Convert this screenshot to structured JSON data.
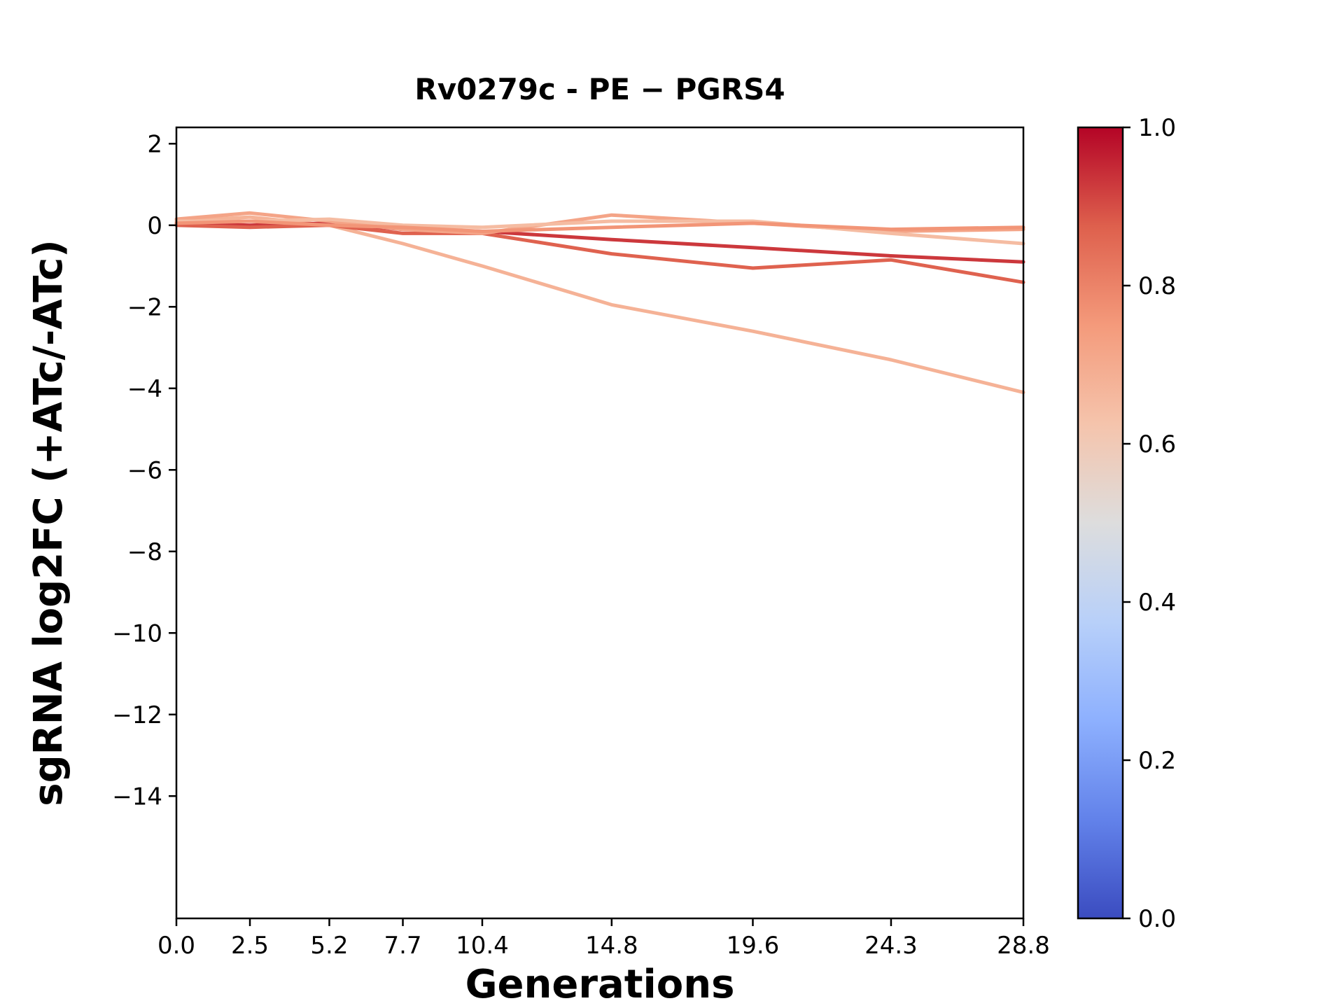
{
  "chart_data": {
    "type": "line",
    "title": "Rv0279c - PE − PGRS4",
    "xlabel": "Generations",
    "ylabel": "sgRNA log2FC (+ATc/-ATc)",
    "x": [
      0.0,
      2.5,
      5.2,
      7.7,
      10.4,
      14.8,
      19.6,
      24.3,
      28.8
    ],
    "x_tick_labels": [
      "0.0",
      "2.5",
      "5.2",
      "7.7",
      "10.4",
      "14.8",
      "19.6",
      "24.3",
      "28.8"
    ],
    "y_ticks": [
      2,
      0,
      -2,
      -4,
      -6,
      -8,
      -10,
      -12,
      -14
    ],
    "y_tick_labels": [
      "2",
      "0",
      "−2",
      "−4",
      "−6",
      "−8",
      "−10",
      "−12",
      "−14"
    ],
    "xlim": [
      0.0,
      28.8
    ],
    "ylim": [
      -17.0,
      2.4
    ],
    "grid": false,
    "series": [
      {
        "name": "line-1",
        "color_value": 0.68,
        "values": [
          0.1,
          0.2,
          0.0,
          -0.45,
          -1.0,
          -1.95,
          -2.6,
          -3.3,
          -4.1
        ]
      },
      {
        "name": "line-2",
        "color_value": 0.93,
        "values": [
          0.05,
          0.0,
          0.05,
          -0.1,
          -0.15,
          -0.35,
          -0.55,
          -0.75,
          -0.9
        ]
      },
      {
        "name": "line-3",
        "color_value": 0.87,
        "values": [
          0.0,
          -0.05,
          0.0,
          -0.2,
          -0.2,
          -0.7,
          -1.05,
          -0.85,
          -1.4
        ]
      },
      {
        "name": "line-4",
        "color_value": 0.72,
        "values": [
          0.15,
          0.3,
          0.1,
          -0.1,
          -0.2,
          0.25,
          0.05,
          -0.15,
          -0.1
        ]
      },
      {
        "name": "line-5",
        "color_value": 0.65,
        "values": [
          0.1,
          0.1,
          0.15,
          0.0,
          -0.05,
          0.1,
          0.1,
          -0.2,
          -0.45
        ]
      },
      {
        "name": "line-6",
        "color_value": 0.76,
        "values": [
          0.05,
          0.1,
          0.0,
          -0.05,
          -0.15,
          -0.05,
          0.05,
          -0.1,
          -0.05
        ]
      }
    ],
    "colorbar": {
      "colormap": "coolwarm",
      "min": 0.0,
      "max": 1.0,
      "tick_values": [
        0.0,
        0.2,
        0.4,
        0.6,
        0.8,
        1.0
      ],
      "tick_labels": [
        "0.0",
        "0.2",
        "0.4",
        "0.6",
        "0.8",
        "1.0"
      ]
    },
    "colors": {
      "axis": "#000000",
      "background": "#ffffff"
    }
  }
}
